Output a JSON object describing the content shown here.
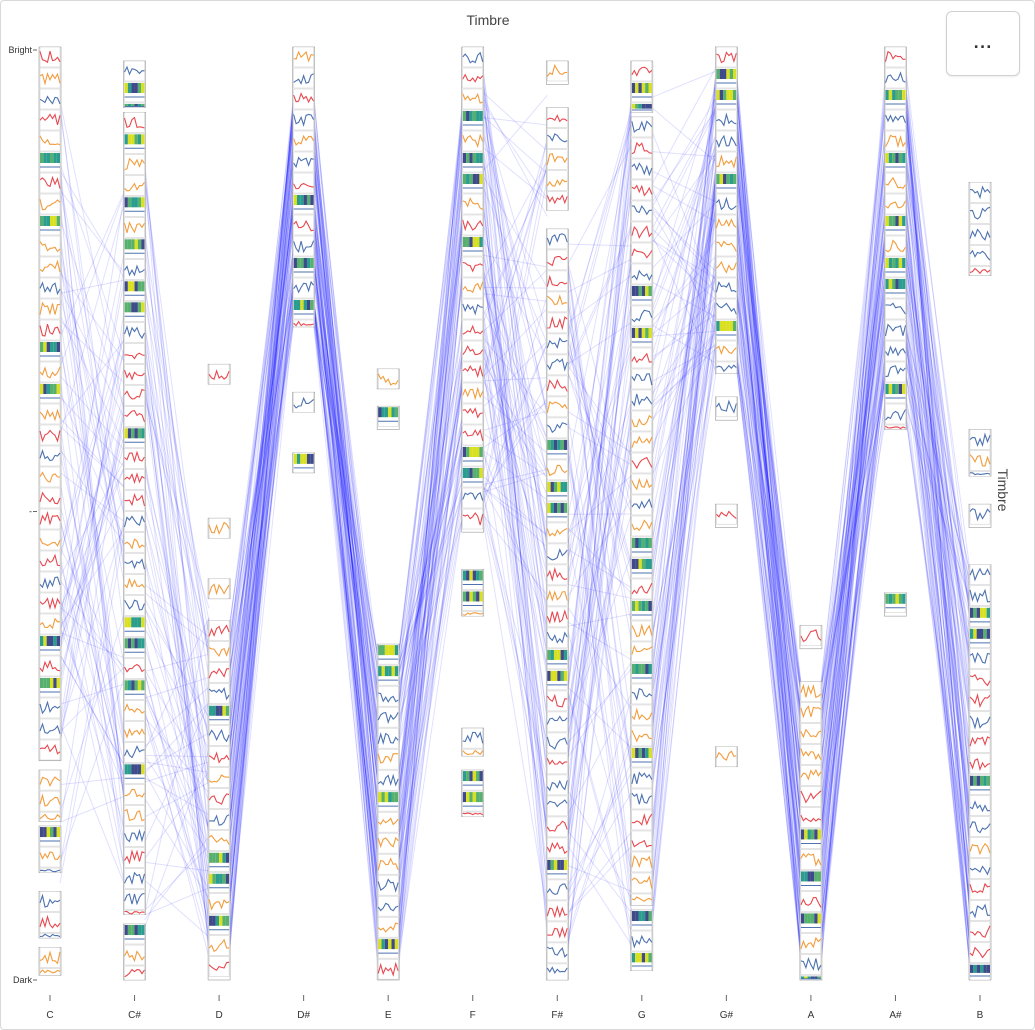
{
  "menu": {
    "label": "..."
  },
  "chart_data": {
    "type": "parallel-coordinates",
    "title": "Timbre",
    "ylabel": "Timbre",
    "y_ticks": [
      "Bright",
      "-",
      "Dark"
    ],
    "categories": [
      "C",
      "C#",
      "D",
      "D#",
      "E",
      "F",
      "F#",
      "G",
      "G#",
      "A",
      "A#",
      "B"
    ],
    "ylim": [
      0,
      1
    ],
    "line_color": "#0000ff",
    "glyph_colors": [
      "#e8484f",
      "#4c72b0",
      "#f39c3c",
      "#2a9d8f",
      "#3e4a89",
      "#d9e021",
      "#58b06f"
    ],
    "tracks": [
      {
        "x": "C",
        "stacks": [
          [
            0.0,
            0.765
          ],
          [
            0.775,
            0.83
          ],
          [
            0.835,
            0.885
          ],
          [
            0.905,
            0.955
          ],
          [
            0.965,
            0.995
          ]
        ]
      },
      {
        "x": "C#",
        "stacks": [
          [
            0.015,
            0.065
          ],
          [
            0.07,
            0.93
          ],
          [
            0.94,
            1.0
          ]
        ]
      },
      {
        "x": "D",
        "stacks": [
          [
            0.34,
            0.36
          ],
          [
            0.505,
            0.525
          ],
          [
            0.57,
            0.585
          ],
          [
            0.615,
            1.0
          ]
        ]
      },
      {
        "x": "D#",
        "stacks": [
          [
            0.0,
            0.3
          ],
          [
            0.37,
            0.39
          ],
          [
            0.435,
            0.455
          ]
        ]
      },
      {
        "x": "E",
        "stacks": [
          [
            0.345,
            0.365
          ],
          [
            0.385,
            0.41
          ],
          [
            0.64,
            1.0
          ]
        ]
      },
      {
        "x": "F",
        "stacks": [
          [
            0.0,
            0.52
          ],
          [
            0.56,
            0.61
          ],
          [
            0.73,
            0.76
          ],
          [
            0.775,
            0.825
          ]
        ]
      },
      {
        "x": "F#",
        "stacks": [
          [
            0.015,
            0.04
          ],
          [
            0.065,
            0.175
          ],
          [
            0.195,
            1.0
          ]
        ]
      },
      {
        "x": "G",
        "stacks": [
          [
            0.015,
            0.07
          ],
          [
            0.075,
            0.92
          ],
          [
            0.925,
            0.99
          ]
        ]
      },
      {
        "x": "G#",
        "stacks": [
          [
            0.0,
            0.35
          ],
          [
            0.375,
            0.4
          ],
          [
            0.49,
            0.515
          ],
          [
            0.75,
            0.77
          ]
        ]
      },
      {
        "x": "A",
        "stacks": [
          [
            0.62,
            0.645
          ],
          [
            0.68,
            1.0
          ]
        ]
      },
      {
        "x": "A#",
        "stacks": [
          [
            0.0,
            0.41
          ],
          [
            0.585,
            0.61
          ]
        ]
      },
      {
        "x": "B",
        "stacks": [
          [
            0.145,
            0.245
          ],
          [
            0.41,
            0.46
          ],
          [
            0.49,
            0.515
          ],
          [
            0.555,
            1.0
          ]
        ]
      }
    ],
    "bundles": [
      {
        "from": "C",
        "to": "C#",
        "from_range": [
          0.05,
          0.9
        ],
        "to_range": [
          0.15,
          0.9
        ],
        "count": 90
      },
      {
        "from": "C#",
        "to": "D",
        "from_range": [
          0.1,
          0.95
        ],
        "to_range": [
          0.6,
          0.98
        ],
        "count": 80
      },
      {
        "from": "D",
        "to": "D#",
        "from_range": [
          0.62,
          0.99
        ],
        "to_range": [
          0.05,
          0.3
        ],
        "count": 100
      },
      {
        "from": "D#",
        "to": "E",
        "from_range": [
          0.05,
          0.3
        ],
        "to_range": [
          0.65,
          0.99
        ],
        "count": 100
      },
      {
        "from": "E",
        "to": "F",
        "from_range": [
          0.65,
          0.99
        ],
        "to_range": [
          0.05,
          0.52
        ],
        "count": 100
      },
      {
        "from": "F",
        "to": "F#",
        "from_range": [
          0.02,
          0.52
        ],
        "to_range": [
          0.05,
          0.98
        ],
        "count": 110
      },
      {
        "from": "F#",
        "to": "G",
        "from_range": [
          0.2,
          0.98
        ],
        "to_range": [
          0.05,
          0.98
        ],
        "count": 110
      },
      {
        "from": "G",
        "to": "G#",
        "from_range": [
          0.05,
          0.95
        ],
        "to_range": [
          0.02,
          0.35
        ],
        "count": 110
      },
      {
        "from": "G#",
        "to": "A",
        "from_range": [
          0.02,
          0.35
        ],
        "to_range": [
          0.68,
          0.99
        ],
        "count": 100
      },
      {
        "from": "A",
        "to": "A#",
        "from_range": [
          0.68,
          0.99
        ],
        "to_range": [
          0.02,
          0.4
        ],
        "count": 100
      },
      {
        "from": "A#",
        "to": "B",
        "from_range": [
          0.02,
          0.4
        ],
        "to_range": [
          0.56,
          0.99
        ],
        "count": 100
      }
    ]
  }
}
